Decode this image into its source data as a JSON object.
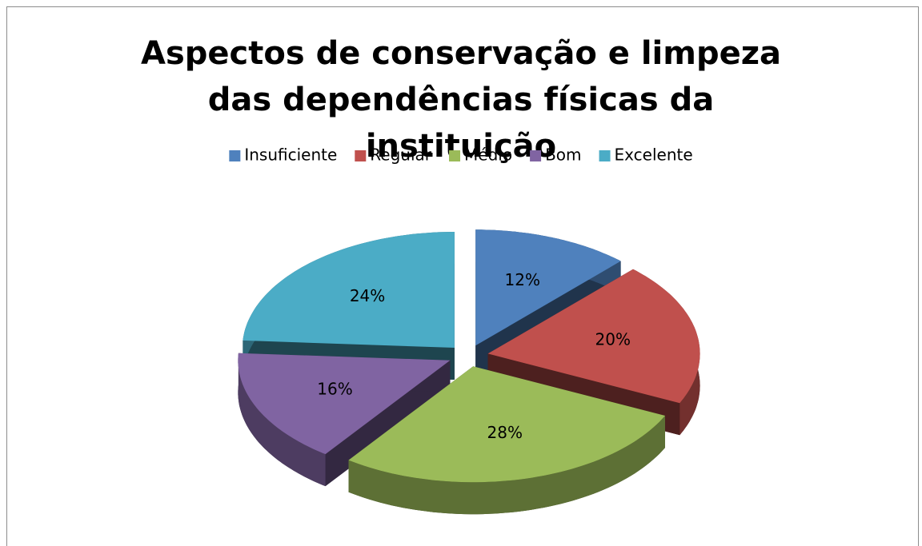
{
  "chart_data": {
    "type": "pie3d",
    "title": "Aspectos de conservação e limpeza das dependências físicas da instituição",
    "categories": [
      "Insuficiente",
      "Regular",
      "Médio",
      "Bom",
      "Excelente"
    ],
    "values": [
      12,
      20,
      28,
      16,
      24
    ],
    "value_labels": [
      "12%",
      "20%",
      "28%",
      "16%",
      "24%"
    ],
    "colors": [
      "#4f81bd",
      "#c0504d",
      "#9bbb59",
      "#8064a2",
      "#4bacc6"
    ],
    "legend": "top"
  }
}
